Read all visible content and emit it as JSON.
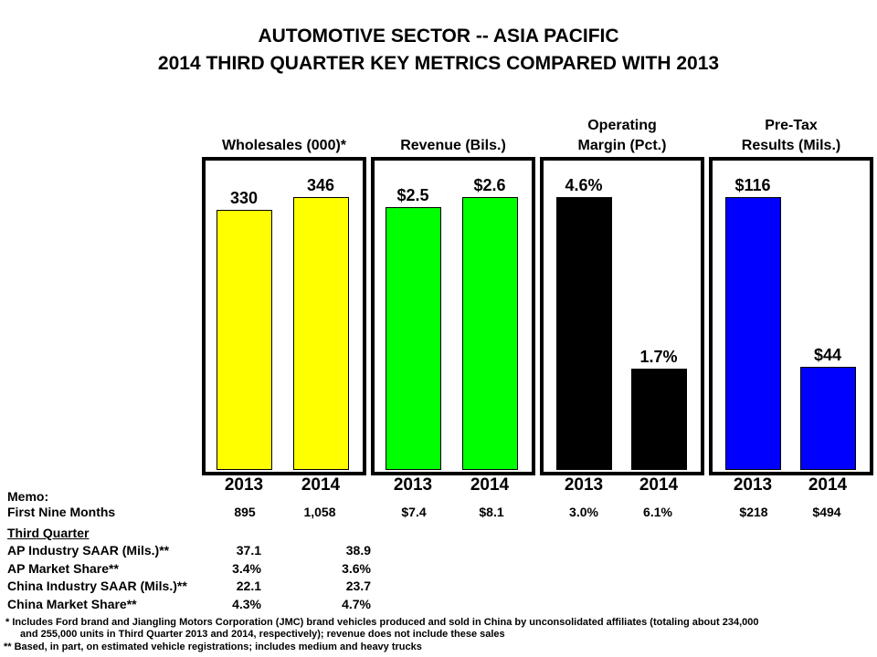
{
  "title_line1": "AUTOMOTIVE SECTOR -- ASIA PACIFIC",
  "title_line2": "2014 THIRD QUARTER KEY METRICS COMPARED WITH 2013",
  "chart_data": [
    {
      "type": "bar",
      "title": "Wholesales (000)*",
      "categories": [
        "2013",
        "2014"
      ],
      "values": [
        330,
        346
      ],
      "labels": [
        "330",
        "346"
      ],
      "color": "#ffff00"
    },
    {
      "type": "bar",
      "title": "Revenue (Bils.)",
      "categories": [
        "2013",
        "2014"
      ],
      "values": [
        2.5,
        2.6
      ],
      "labels": [
        "$2.5",
        "$2.6"
      ],
      "color": "#00ff00"
    },
    {
      "type": "bar",
      "title_line1": "Operating",
      "title": "Margin (Pct.)",
      "categories": [
        "2013",
        "2014"
      ],
      "values": [
        4.6,
        1.7
      ],
      "labels": [
        "4.6%",
        "1.7%"
      ],
      "color": "#000000"
    },
    {
      "type": "bar",
      "title_line1": "Pre-Tax",
      "title": "Results (Mils.)",
      "categories": [
        "2013",
        "2014"
      ],
      "values": [
        116,
        44
      ],
      "labels": [
        "$116",
        "$44"
      ],
      "color": "#0000ff"
    }
  ],
  "memo": {
    "label": "Memo:",
    "first_nine_label": "First Nine Months",
    "first_nine": [
      "895",
      "1,058",
      "$7.4",
      "$8.1",
      "3.0%",
      "6.1%",
      "$218",
      "$494"
    ],
    "third_quarter_label": "Third Quarter",
    "rows": [
      {
        "label": "AP Industry SAAR (Mils.)**",
        "v2013": "37.1",
        "v2014": "38.9"
      },
      {
        "label": "AP Market Share**",
        "v2013": "3.4%",
        "v2014": "3.6%"
      },
      {
        "label": "China Industry SAAR (Mils.)**",
        "v2013": "22.1",
        "v2014": "23.7"
      },
      {
        "label": "China Market Share**",
        "v2013": "4.3%",
        "v2014": "4.7%"
      }
    ]
  },
  "footnotes": [
    "*  Includes Ford brand and Jiangling Motors Corporation (JMC) brand vehicles produced and sold in China by unconsolidated affiliates (totaling about 234,000",
    "and 255,000 units in Third Quarter 2013 and 2014, respectively); revenue does not include these sales",
    "**  Based, in part, on estimated vehicle registrations; includes medium and heavy trucks"
  ]
}
